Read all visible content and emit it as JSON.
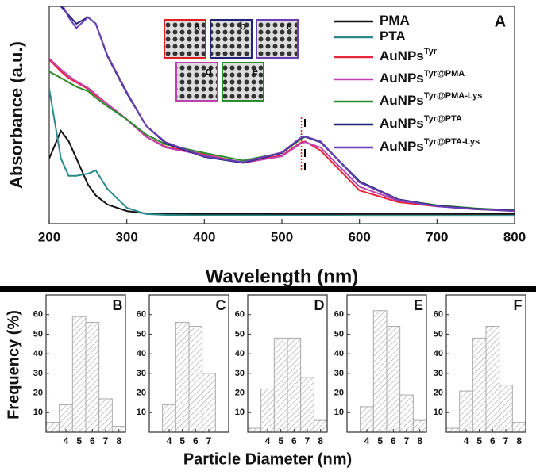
{
  "chart_data": [
    {
      "type": "line",
      "panel_label": "A",
      "xlabel": "Wavelength (nm)",
      "ylabel": "Absorbance (a.u.)",
      "xlim": [
        200,
        800
      ],
      "xticks": [
        200,
        300,
        400,
        500,
        600,
        700,
        800
      ],
      "ylim": [
        0,
        100
      ],
      "inset_labels": [
        "a",
        "b",
        "c",
        "d",
        "e"
      ],
      "x": [
        200,
        215,
        225,
        235,
        250,
        260,
        275,
        300,
        325,
        350,
        400,
        450,
        500,
        525,
        530,
        550,
        600,
        650,
        700,
        750,
        800
      ],
      "series": [
        {
          "name": "PMA",
          "color": "#111111",
          "values": [
            30,
            42.7,
            38,
            30,
            18,
            13,
            8.8,
            5.8,
            4.7,
            4.4,
            4.4,
            4.4,
            4.4,
            4.4,
            4.4,
            4.4,
            4.4,
            4.4,
            4.4,
            4.4,
            4.4
          ]
        },
        {
          "name": "PTA",
          "color": "#2a8a8a",
          "values": [
            62,
            30,
            22,
            22,
            23,
            24.5,
            16,
            7.3,
            4.4,
            4,
            3.8,
            3.8,
            3.7,
            3.7,
            3.7,
            3.7,
            3.6,
            3.6,
            3.6,
            3.6,
            3.6
          ]
        },
        {
          "name": "AuNPs",
          "name_sup": "Tyr",
          "color": "#e8253a",
          "values": [
            75.5,
            70,
            67,
            65,
            62,
            59,
            55,
            48,
            40,
            35.4,
            31.8,
            28,
            31.4,
            37.5,
            37.8,
            33.6,
            15.3,
            9.9,
            8,
            6.6,
            5.8
          ]
        },
        {
          "name": "AuNPs",
          "name_sup": "Tyr@PMA",
          "color": "#c040b0",
          "values": [
            76,
            71,
            68,
            65.5,
            62.5,
            59.5,
            55,
            48,
            40,
            35,
            31.5,
            28,
            31,
            37,
            37.5,
            35,
            17,
            10.5,
            8.3,
            6.8,
            6
          ]
        },
        {
          "name": "AuNPs",
          "name_sup": "Tyr@PMA-Lys",
          "color": "#2a8c2a",
          "values": [
            70,
            67,
            65,
            63,
            61,
            58,
            54,
            48,
            41,
            36.5,
            32.5,
            29,
            32.5,
            39,
            40,
            37.5,
            19,
            11,
            8.5,
            7,
            6.2
          ]
        },
        {
          "name": "AuNPs",
          "name_sup": "Tyr@PTA",
          "color": "#23237a",
          "values": [
            108,
            100,
            96,
            92,
            95,
            92,
            77,
            60,
            45,
            37,
            30.7,
            28,
            32.5,
            39.5,
            40,
            37.5,
            19.5,
            11.2,
            8.2,
            6.8,
            6
          ]
        },
        {
          "name": "AuNPs",
          "name_sup": "Tyr@PTA-Lys",
          "color": "#6a3fb5",
          "values": [
            112,
            102,
            95,
            90,
            95,
            92,
            77.5,
            60.5,
            45,
            37.5,
            31,
            28.3,
            32.8,
            39.7,
            40.2,
            37.8,
            19,
            11,
            8,
            6.6,
            5.8
          ]
        }
      ]
    },
    {
      "type": "histogram",
      "panel_label": "B",
      "ylabel": "Frequency (%)",
      "bins": [
        2.5,
        3.5,
        4.5,
        5.5,
        6.5,
        7.5,
        8.5
      ],
      "counts": [
        5,
        14,
        59,
        56,
        17,
        3
      ],
      "xlim": [
        2.5,
        8.5
      ],
      "xticks": [
        4,
        5,
        6,
        7,
        8
      ],
      "ylim": [
        0,
        70
      ],
      "yticks": [
        10,
        20,
        30,
        40,
        50,
        60
      ],
      "color": "#aaaaaa"
    },
    {
      "type": "histogram",
      "panel_label": "C",
      "bins": [
        2.5,
        3.5,
        4.5,
        5.5,
        6.5,
        7.5,
        8.5
      ],
      "counts": [
        0,
        14,
        56,
        54,
        30,
        0
      ],
      "xlim": [
        2.5,
        8.5
      ],
      "xticks": [
        4,
        5,
        6,
        7
      ],
      "ylim": [
        0,
        70
      ],
      "yticks": [
        10,
        20,
        30,
        40,
        50,
        60
      ],
      "color": "#aaaaaa"
    },
    {
      "type": "histogram",
      "panel_label": "D",
      "xlabel": "Particle Diameter (nm)",
      "bins": [
        2.5,
        3.5,
        4.5,
        5.5,
        6.5,
        7.5,
        8.5
      ],
      "counts": [
        2,
        22,
        48,
        48,
        28,
        6
      ],
      "xlim": [
        2.5,
        8.5
      ],
      "xticks": [
        4,
        5,
        6,
        7,
        8
      ],
      "ylim": [
        0,
        70
      ],
      "yticks": [
        10,
        20,
        30,
        40,
        50,
        60
      ],
      "color": "#aaaaaa"
    },
    {
      "type": "histogram",
      "panel_label": "E",
      "bins": [
        2.5,
        3.5,
        4.5,
        5.5,
        6.5,
        7.5,
        8.5
      ],
      "counts": [
        0,
        13,
        62,
        54,
        19,
        6
      ],
      "xlim": [
        2.5,
        8.5
      ],
      "xticks": [
        4,
        5,
        6,
        7,
        8
      ],
      "ylim": [
        0,
        70
      ],
      "yticks": [
        10,
        20,
        30,
        40,
        50,
        60
      ],
      "color": "#aaaaaa"
    },
    {
      "type": "histogram",
      "panel_label": "F",
      "bins": [
        2.5,
        3.5,
        4.5,
        5.5,
        6.5,
        7.5,
        8.5
      ],
      "counts": [
        2,
        21,
        48,
        54,
        24,
        5
      ],
      "xlim": [
        2.5,
        8.5
      ],
      "xticks": [
        4,
        5,
        6,
        7,
        8
      ],
      "ylim": [
        0,
        70
      ],
      "yticks": [
        10,
        20,
        30,
        40,
        50,
        60
      ],
      "color": "#aaaaaa"
    }
  ]
}
